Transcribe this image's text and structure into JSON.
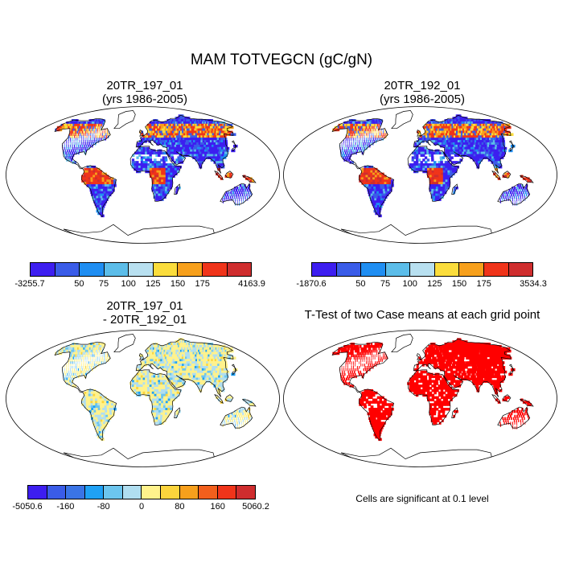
{
  "title": "MAM TOTVEGCN (gC/gN)",
  "panels": [
    {
      "id": "p1",
      "title_line1": "20TR_197_01",
      "title_line2": "(yrs 1986-2005)",
      "kind": "case"
    },
    {
      "id": "p2",
      "title_line1": "20TR_192_01",
      "title_line2": "(yrs 1986-2005)",
      "kind": "case"
    },
    {
      "id": "p3",
      "title_line1": "20TR_197_01",
      "title_line2": "- 20TR_192_01",
      "kind": "diff"
    },
    {
      "id": "p4",
      "title_line1": "T-Test of two Case means at each grid point",
      "title_line2": "",
      "kind": "ttest"
    }
  ],
  "colorbars": [
    {
      "id": "cb1",
      "colors": [
        "#3d1ef0",
        "#3a5ce8",
        "#1f8ef2",
        "#5cbde9",
        "#b8e0f0",
        "#fbdd3c",
        "#f7a01c",
        "#f0341a",
        "#cf2d2e"
      ],
      "labels": [
        "-3255.7",
        "50",
        "75",
        "100",
        "125",
        "150",
        "175",
        "4163.9"
      ]
    },
    {
      "id": "cb2",
      "colors": [
        "#3d1ef0",
        "#3a5ce8",
        "#1f8ef2",
        "#5cbde9",
        "#b8e0f0",
        "#fbdd3c",
        "#f7a01c",
        "#f0341a",
        "#cf2d2e"
      ],
      "labels": [
        "-1870.6",
        "50",
        "75",
        "100",
        "125",
        "150",
        "175",
        "3534.3"
      ]
    },
    {
      "id": "cb3",
      "colors": [
        "#3d1ef0",
        "#3a5ce8",
        "#3a74e6",
        "#1fa1f5",
        "#6cc5ee",
        "#b0def0",
        "#fff28c",
        "#fbd43c",
        "#f7a01c",
        "#f25f1c",
        "#f0341a",
        "#cf2d2e"
      ],
      "labels": [
        "-5050.6",
        "-160",
        "-80",
        "0",
        "80",
        "160",
        "5060.2"
      ]
    }
  ],
  "significance_note": "Cells are significant at 0.1 level"
}
